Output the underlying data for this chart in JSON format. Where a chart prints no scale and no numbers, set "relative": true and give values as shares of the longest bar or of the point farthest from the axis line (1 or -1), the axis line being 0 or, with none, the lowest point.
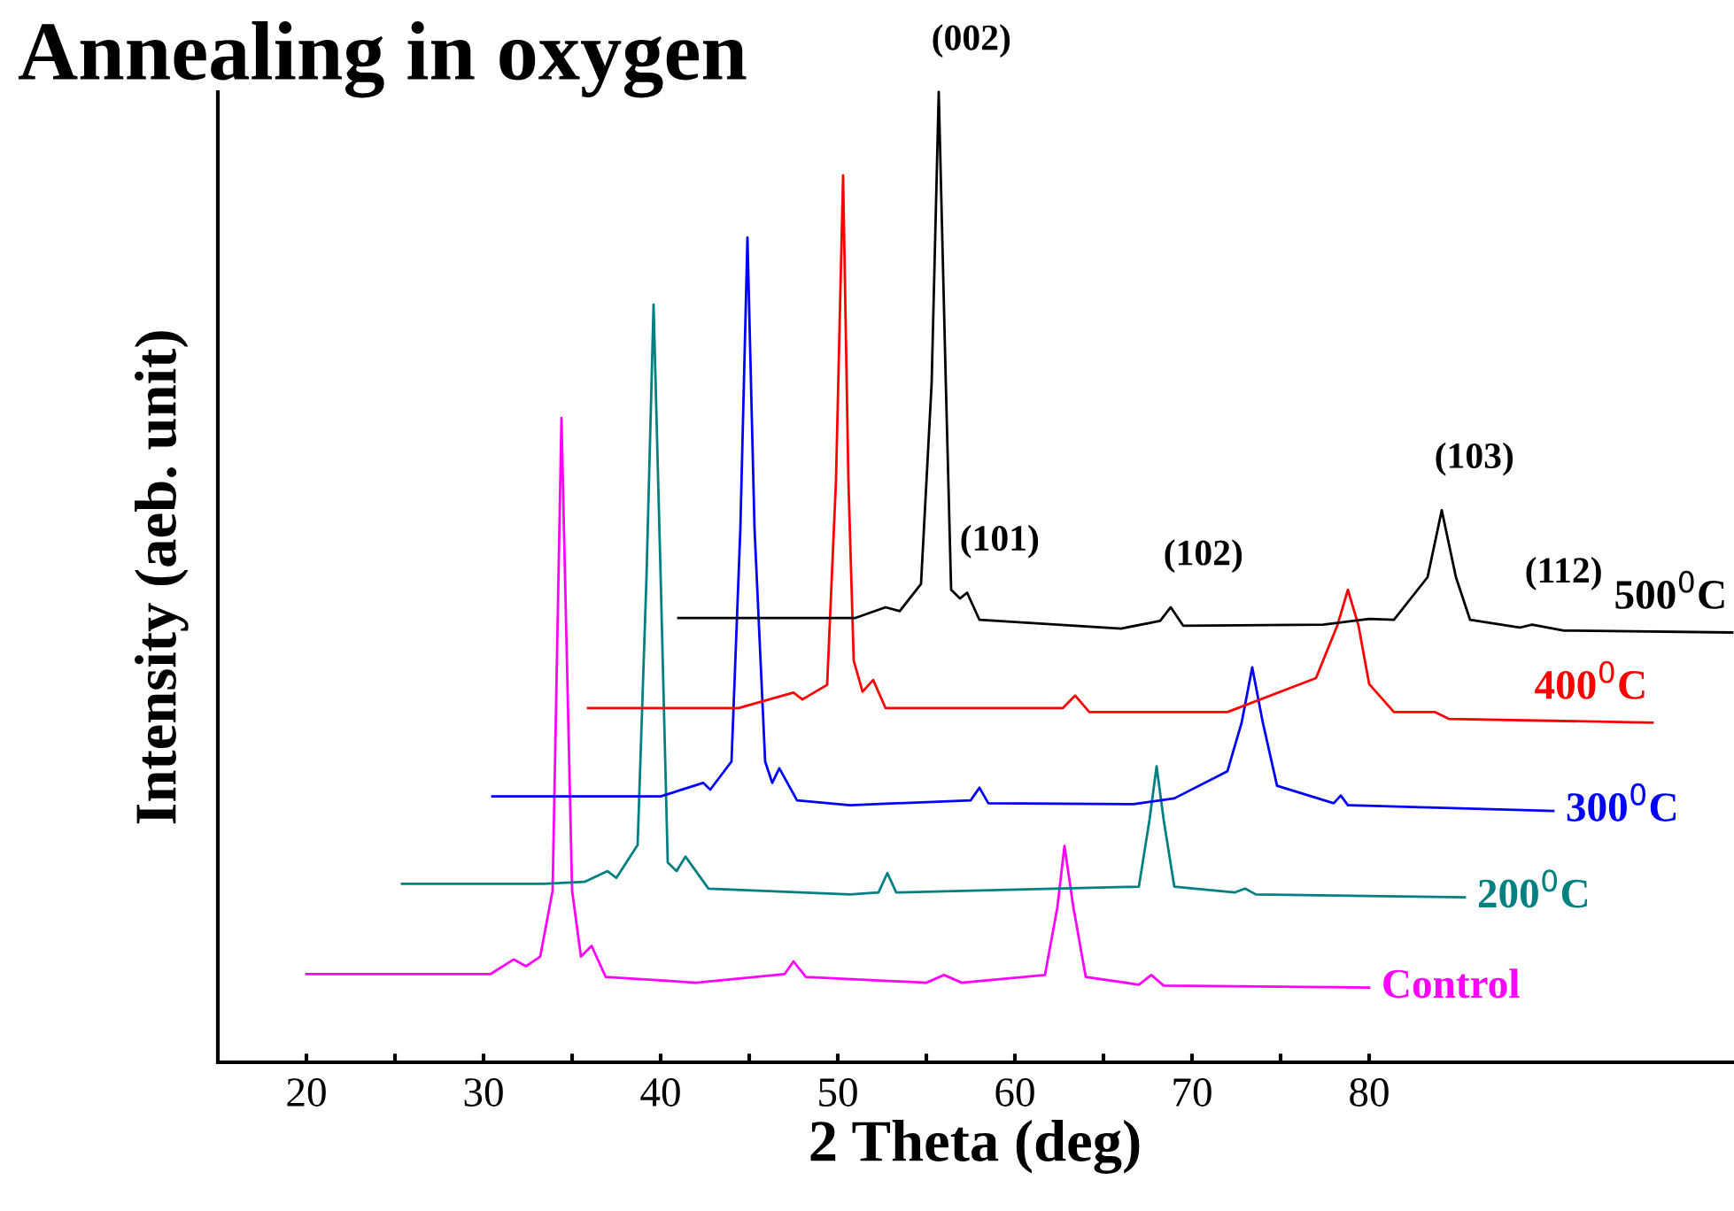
{
  "chart_data": {
    "type": "line",
    "title": "Annealing in oxygen",
    "xlabel": "2 Theta (deg)",
    "ylabel": "Intensity (aeb. unit)",
    "relative": true,
    "legend": false,
    "grid": false,
    "marker": "none",
    "line_style": "solid",
    "xlim": [
      15,
      100.5
    ],
    "xticks": [
      20,
      {
        "value": 25,
        "label": null
      },
      30,
      {
        "value": 35,
        "label": null
      },
      40,
      {
        "value": 45,
        "label": null
      },
      50,
      {
        "value": 55,
        "label": null
      },
      60,
      {
        "value": 65,
        "label": null
      },
      70,
      {
        "value": 75,
        "label": null
      },
      80
    ],
    "series": [
      {
        "name": "Control",
        "color": "#ff00ff",
        "x": [
          20.0,
          30.4,
          31.7,
          32.4,
          33.2,
          33.9,
          34.4,
          35.0,
          35.5,
          36.1,
          36.9,
          42.0,
          47.0,
          47.5,
          48.2,
          55.0,
          56.0,
          57.0,
          61.7,
          62.4,
          62.8,
          63.3,
          64.0,
          67.0,
          67.7,
          68.4,
          80.0
        ],
        "values": [
          0.091,
          0.091,
          0.106,
          0.099,
          0.109,
          0.177,
          0.664,
          0.177,
          0.109,
          0.12,
          0.088,
          0.082,
          0.091,
          0.104,
          0.088,
          0.082,
          0.09,
          0.082,
          0.09,
          0.16,
          0.223,
          0.16,
          0.088,
          0.08,
          0.09,
          0.079,
          0.077
        ]
      },
      {
        "name": "200$^{0}$C",
        "color": "#008080",
        "x": [
          25.4,
          33.4,
          35.7,
          37.0,
          37.5,
          38.7,
          39.2,
          39.6,
          40.0,
          40.4,
          40.9,
          41.4,
          42.7,
          50.7,
          52.3,
          52.8,
          53.3,
          67.0,
          67.6,
          68.0,
          68.4,
          69.0,
          72.4,
          73.0,
          73.6,
          85.4
        ],
        "values": [
          0.184,
          0.184,
          0.186,
          0.197,
          0.19,
          0.224,
          0.5,
          0.781,
          0.5,
          0.206,
          0.197,
          0.212,
          0.179,
          0.173,
          0.175,
          0.195,
          0.175,
          0.181,
          0.25,
          0.305,
          0.25,
          0.181,
          0.175,
          0.179,
          0.173,
          0.17
        ]
      },
      {
        "name": "300$^{0}$C",
        "color": "#0000ff",
        "x": [
          30.5,
          40.0,
          42.4,
          42.8,
          44.0,
          44.5,
          44.9,
          45.3,
          45.9,
          46.3,
          46.7,
          47.7,
          50.7,
          57.5,
          58.0,
          58.5,
          66.7,
          69.0,
          72.0,
          72.8,
          73.4,
          74.0,
          74.8,
          78.0,
          78.4,
          78.8,
          90.4
        ],
        "values": [
          0.274,
          0.274,
          0.288,
          0.281,
          0.31,
          0.55,
          0.85,
          0.55,
          0.31,
          0.288,
          0.303,
          0.27,
          0.265,
          0.27,
          0.283,
          0.267,
          0.266,
          0.272,
          0.3,
          0.35,
          0.407,
          0.35,
          0.285,
          0.267,
          0.275,
          0.265,
          0.259
        ]
      },
      {
        "name": "400$^{0}$C",
        "color": "#ff0000",
        "x": [
          35.9,
          44.4,
          47.5,
          48.0,
          49.4,
          49.9,
          50.3,
          50.6,
          50.9,
          51.4,
          52.0,
          52.7,
          62.7,
          63.4,
          64.2,
          72.0,
          77.0,
          78.2,
          78.8,
          79.4,
          80.0,
          81.4,
          83.7,
          84.5,
          96.0
        ],
        "values": [
          0.365,
          0.365,
          0.381,
          0.374,
          0.389,
          0.6,
          0.914,
          0.6,
          0.414,
          0.382,
          0.394,
          0.365,
          0.365,
          0.378,
          0.361,
          0.361,
          0.396,
          0.45,
          0.487,
          0.45,
          0.39,
          0.361,
          0.361,
          0.354,
          0.35
        ]
      },
      {
        "name": "500$^{0}$C",
        "color": "#000000",
        "x": [
          41.0,
          49.7,
          51.0,
          52.7,
          53.5,
          54.7,
          55.3,
          55.7,
          56.1,
          56.4,
          56.9,
          57.3,
          58.0,
          66.0,
          68.2,
          68.8,
          69.5,
          77.4,
          80.0,
          81.4,
          83.3,
          84.1,
          84.9,
          85.7,
          88.5,
          89.2,
          91.0,
          100.5
        ],
        "values": [
          0.458,
          0.458,
          0.458,
          0.469,
          0.465,
          0.493,
          0.7,
          1.0,
          0.7,
          0.487,
          0.478,
          0.484,
          0.456,
          0.447,
          0.455,
          0.469,
          0.45,
          0.451,
          0.457,
          0.456,
          0.5,
          0.569,
          0.5,
          0.456,
          0.448,
          0.451,
          0.445,
          0.443
        ]
      }
    ],
    "annotations": [
      {
        "text": "(002)",
        "x": 55.7,
        "y": 1.0
      },
      {
        "text": "(101)",
        "x": 57.3,
        "y": 0.484
      },
      {
        "text": "(102)",
        "x": 68.8,
        "y": 0.469
      },
      {
        "text": "(103)",
        "x": 84.1,
        "y": 0.569
      },
      {
        "text": "(112)",
        "x": 89.2,
        "y": 0.451
      }
    ]
  }
}
